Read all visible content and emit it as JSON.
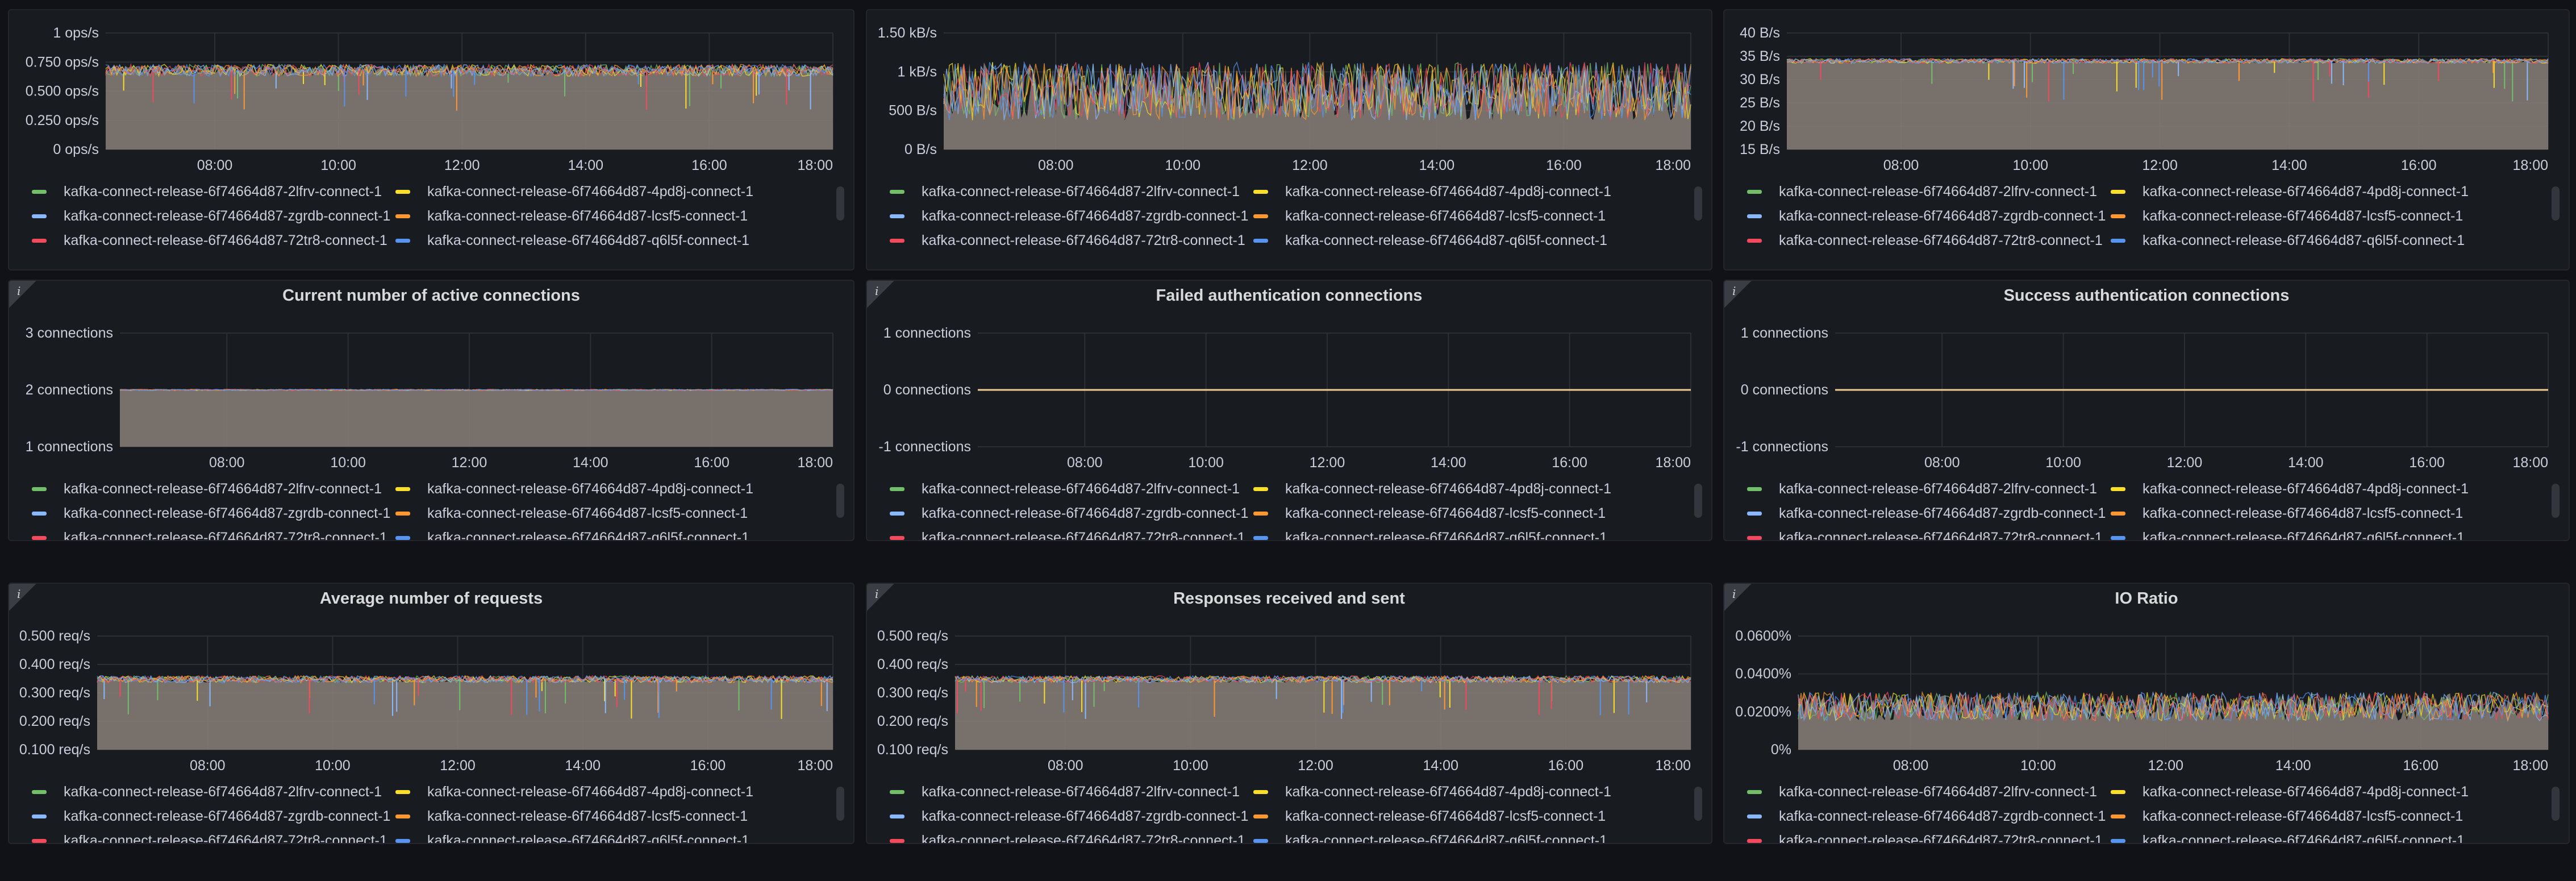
{
  "colors": {
    "background": "#111217",
    "panel": "#181b1f",
    "grid": "#2c2f35",
    "area_fill": "#8a7f78"
  },
  "legend": [
    {
      "name": "kafka-connect-release-6f74664d87-2lfrv-connect-1",
      "color": "#73bf69"
    },
    {
      "name": "kafka-connect-release-6f74664d87-4pd8j-connect-1",
      "color": "#fade2a"
    },
    {
      "name": "kafka-connect-release-6f74664d87-zgrdb-connect-1",
      "color": "#8ab8ff"
    },
    {
      "name": "kafka-connect-release-6f74664d87-lcsf5-connect-1",
      "color": "#ff9830"
    },
    {
      "name": "kafka-connect-release-6f74664d87-72tr8-connect-1",
      "color": "#f2495c"
    },
    {
      "name": "kafka-connect-release-6f74664d87-q6l5f-connect-1",
      "color": "#5794f2"
    }
  ],
  "panels": [
    {
      "id": "p1",
      "title": "",
      "info": false,
      "chart_data": {
        "type": "area",
        "y_ticks": [
          "1 ops/s",
          "0.750 ops/s",
          "0.500 ops/s",
          "0.250 ops/s",
          "0 ops/s"
        ],
        "ylim": [
          0,
          1
        ],
        "x_ticks": [
          "08:00",
          "10:00",
          "12:00",
          "14:00",
          "16:00",
          "18:00"
        ],
        "level": 0.68,
        "noise": 0.1,
        "spike_chance": 0.02
      }
    },
    {
      "id": "p2",
      "title": "",
      "info": false,
      "chart_data": {
        "type": "area",
        "y_ticks": [
          "1.50 kB/s",
          "1 kB/s",
          "500 B/s",
          "0 B/s"
        ],
        "ylim": [
          0,
          1.5
        ],
        "x_ticks": [
          "08:00",
          "10:00",
          "12:00",
          "14:00",
          "16:00",
          "18:00"
        ],
        "level": 0.5,
        "noise": 0.5,
        "spike_chance": 0.0
      }
    },
    {
      "id": "p3",
      "title": "",
      "info": false,
      "chart_data": {
        "type": "area",
        "y_ticks": [
          "40 B/s",
          "35 B/s",
          "30 B/s",
          "25 B/s",
          "20 B/s",
          "15 B/s"
        ],
        "ylim": [
          15,
          40
        ],
        "x_ticks": [
          "08:00",
          "10:00",
          "12:00",
          "14:00",
          "16:00",
          "18:00"
        ],
        "level": 0.76,
        "noise": 0.04,
        "spike_chance": 0.015
      }
    },
    {
      "id": "p4",
      "title": "Current number of active connections",
      "info": true,
      "chart_data": {
        "type": "area",
        "y_ticks": [
          "3 connections",
          "2 connections",
          "1 connections"
        ],
        "ylim": [
          1,
          3
        ],
        "x_ticks": [
          "08:00",
          "10:00",
          "12:00",
          "14:00",
          "16:00",
          "18:00"
        ],
        "level": 0.5,
        "noise": 0.0,
        "spike_chance": 0.0
      }
    },
    {
      "id": "p5",
      "title": "Failed authentication connections",
      "info": true,
      "chart_data": {
        "type": "line",
        "y_ticks": [
          "1 connections",
          "0 connections",
          "-1 connections"
        ],
        "ylim": [
          -1,
          1
        ],
        "x_ticks": [
          "08:00",
          "10:00",
          "12:00",
          "14:00",
          "16:00",
          "18:00"
        ],
        "level": 0.5,
        "noise": 0.0,
        "spike_chance": 0.0
      }
    },
    {
      "id": "p6",
      "title": "Success authentication connections",
      "info": true,
      "chart_data": {
        "type": "line",
        "y_ticks": [
          "1 connections",
          "0 connections",
          "-1 connections"
        ],
        "ylim": [
          -1,
          1
        ],
        "x_ticks": [
          "08:00",
          "10:00",
          "12:00",
          "14:00",
          "16:00",
          "18:00"
        ],
        "level": 0.5,
        "noise": 0.0,
        "spike_chance": 0.0
      }
    },
    {
      "id": "p7",
      "title": "Average number of requests",
      "info": true,
      "chart_data": {
        "type": "area",
        "y_ticks": [
          "0.500 req/s",
          "0.400 req/s",
          "0.300 req/s",
          "0.200 req/s",
          "0.100 req/s"
        ],
        "ylim": [
          0.1,
          0.5
        ],
        "x_ticks": [
          "08:00",
          "10:00",
          "12:00",
          "14:00",
          "16:00",
          "18:00"
        ],
        "level": 0.62,
        "noise": 0.06,
        "spike_chance": 0.012
      }
    },
    {
      "id": "p8",
      "title": "Responses received and sent",
      "info": true,
      "chart_data": {
        "type": "area",
        "y_ticks": [
          "0.500 req/s",
          "0.400 req/s",
          "0.300 req/s",
          "0.200 req/s",
          "0.100 req/s"
        ],
        "ylim": [
          0.1,
          0.5
        ],
        "x_ticks": [
          "08:00",
          "10:00",
          "12:00",
          "14:00",
          "16:00",
          "18:00"
        ],
        "level": 0.62,
        "noise": 0.06,
        "spike_chance": 0.012
      }
    },
    {
      "id": "p9",
      "title": "IO Ratio",
      "info": true,
      "chart_data": {
        "type": "area",
        "y_ticks": [
          "0.0600%",
          "0.0400%",
          "0.0200%",
          "0%"
        ],
        "ylim": [
          0,
          0.06
        ],
        "x_ticks": [
          "08:00",
          "10:00",
          "12:00",
          "14:00",
          "16:00",
          "18:00"
        ],
        "level": 0.38,
        "noise": 0.25,
        "spike_chance": 0.0
      }
    }
  ]
}
